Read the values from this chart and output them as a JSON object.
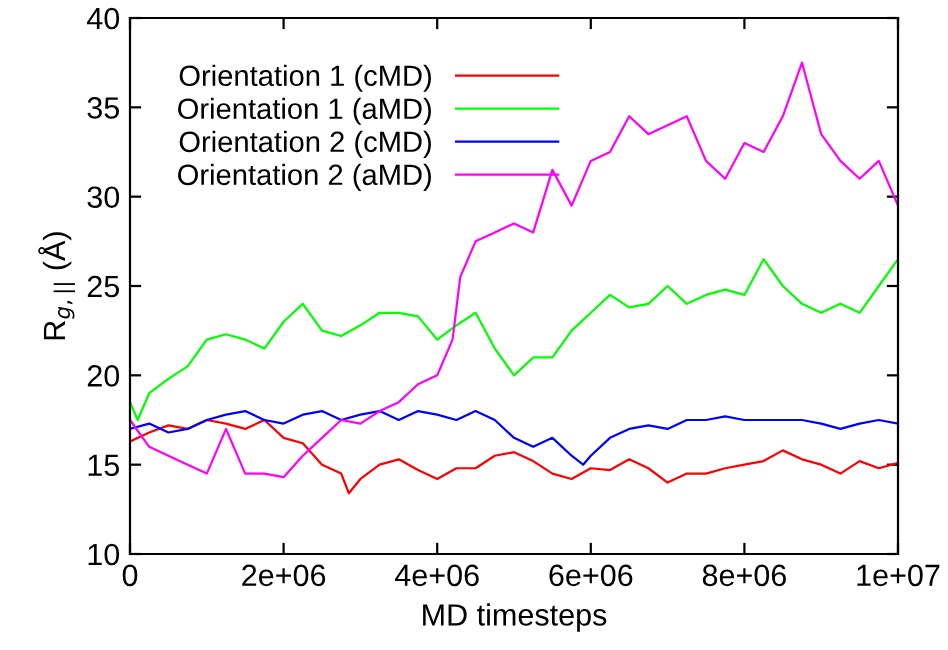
{
  "chart_data": {
    "type": "line",
    "xlabel": "MD timesteps",
    "ylabel": "R$_{g,||}$ (Å)",
    "xlim": [
      0,
      10000000
    ],
    "ylim": [
      10,
      40
    ],
    "xticks": [
      0,
      {
        "value": 2000000,
        "label": "2e+06"
      },
      {
        "value": 4000000,
        "label": "4e+06"
      },
      {
        "value": 6000000,
        "label": "6e+06"
      },
      {
        "value": 8000000,
        "label": "8e+06"
      },
      {
        "value": 10000000,
        "label": "1e+07"
      }
    ],
    "yticks": [
      10,
      15,
      20,
      25,
      30,
      35,
      40
    ],
    "grid": false,
    "legend": "top left",
    "line_style": "solid",
    "marker": "none",
    "series": [
      {
        "name": "Orientation 1 (cMD)",
        "color": "#ff0000",
        "x": [
          0,
          250000,
          500000,
          750000,
          1000000,
          1250000,
          1500000,
          1750000,
          2000000,
          2250000,
          2500000,
          2750000,
          2850000,
          3000000,
          3250000,
          3500000,
          3750000,
          4000000,
          4250000,
          4500000,
          4750000,
          5000000,
          5250000,
          5500000,
          5750000,
          6000000,
          6250000,
          6500000,
          6750000,
          7000000,
          7250000,
          7500000,
          7750000,
          8000000,
          8250000,
          8500000,
          8750000,
          9000000,
          9250000,
          9500000,
          9750000,
          10000000
        ],
        "values": [
          16.3,
          16.8,
          17.2,
          17.0,
          17.5,
          17.3,
          17.0,
          17.5,
          16.5,
          16.2,
          15.0,
          14.5,
          13.4,
          14.2,
          15.0,
          15.3,
          14.7,
          14.2,
          14.8,
          14.8,
          15.5,
          15.7,
          15.2,
          14.5,
          14.2,
          14.8,
          14.7,
          15.3,
          14.8,
          14.0,
          14.5,
          14.5,
          14.8,
          15.0,
          15.2,
          15.8,
          15.3,
          15.0,
          14.5,
          15.2,
          14.8,
          15.1
        ]
      },
      {
        "name": "Orientation 1 (aMD)",
        "color": "#00ff00",
        "x": [
          0,
          100000,
          250000,
          500000,
          750000,
          1000000,
          1250000,
          1500000,
          1750000,
          2000000,
          2250000,
          2500000,
          2750000,
          3000000,
          3250000,
          3500000,
          3750000,
          4000000,
          4250000,
          4500000,
          4750000,
          5000000,
          5250000,
          5500000,
          5750000,
          6000000,
          6250000,
          6500000,
          6750000,
          7000000,
          7250000,
          7500000,
          7750000,
          8000000,
          8250000,
          8500000,
          8750000,
          9000000,
          9250000,
          9500000,
          9750000,
          10000000
        ],
        "values": [
          18.5,
          17.5,
          19.0,
          19.8,
          20.5,
          22.0,
          22.3,
          22.0,
          21.5,
          23.0,
          24.0,
          22.5,
          22.2,
          22.8,
          23.5,
          23.5,
          23.3,
          22.0,
          22.8,
          23.5,
          21.5,
          20.0,
          21.0,
          21.0,
          22.5,
          23.5,
          24.5,
          23.8,
          24.0,
          25.0,
          24.0,
          24.5,
          24.8,
          24.5,
          26.5,
          25.0,
          24.0,
          23.5,
          24.0,
          23.5,
          25.0,
          26.5
        ]
      },
      {
        "name": "Orientation 2 (cMD)",
        "color": "#0000ff",
        "x": [
          0,
          250000,
          500000,
          750000,
          1000000,
          1250000,
          1500000,
          1750000,
          2000000,
          2250000,
          2500000,
          2750000,
          3000000,
          3250000,
          3500000,
          3750000,
          4000000,
          4250000,
          4500000,
          4750000,
          5000000,
          5250000,
          5500000,
          5750000,
          5900000,
          6000000,
          6250000,
          6500000,
          6750000,
          7000000,
          7250000,
          7500000,
          7750000,
          8000000,
          8250000,
          8500000,
          8750000,
          9000000,
          9250000,
          9500000,
          9750000,
          10000000
        ],
        "values": [
          17.0,
          17.3,
          16.8,
          17.0,
          17.5,
          17.8,
          18.0,
          17.5,
          17.3,
          17.8,
          18.0,
          17.5,
          17.8,
          18.0,
          17.5,
          18.0,
          17.8,
          17.5,
          18.0,
          17.5,
          16.5,
          16.0,
          16.5,
          15.5,
          15.0,
          15.5,
          16.5,
          17.0,
          17.2,
          17.0,
          17.5,
          17.5,
          17.7,
          17.5,
          17.5,
          17.5,
          17.5,
          17.3,
          17.0,
          17.3,
          17.5,
          17.3
        ]
      },
      {
        "name": "Orientation 2 (aMD)",
        "color": "#ff00ff",
        "x": [
          0,
          250000,
          500000,
          750000,
          1000000,
          1250000,
          1500000,
          1750000,
          2000000,
          2250000,
          2500000,
          2750000,
          3000000,
          3250000,
          3500000,
          3750000,
          4000000,
          4200000,
          4300000,
          4500000,
          4750000,
          5000000,
          5250000,
          5500000,
          5750000,
          6000000,
          6250000,
          6500000,
          6750000,
          7000000,
          7250000,
          7500000,
          7750000,
          8000000,
          8250000,
          8500000,
          8750000,
          9000000,
          9250000,
          9500000,
          9750000,
          10000000
        ],
        "values": [
          17.5,
          16.0,
          15.5,
          15.0,
          14.5,
          17.0,
          14.5,
          14.5,
          14.3,
          15.5,
          16.5,
          17.5,
          17.3,
          18.0,
          18.5,
          19.5,
          20.0,
          22.0,
          25.5,
          27.5,
          28.0,
          28.5,
          28.0,
          31.5,
          29.5,
          32.0,
          32.5,
          34.5,
          33.5,
          34.0,
          34.5,
          32.0,
          31.0,
          33.0,
          32.5,
          34.5,
          37.5,
          33.5,
          32.0,
          31.0,
          32.0,
          29.5
        ]
      }
    ]
  }
}
